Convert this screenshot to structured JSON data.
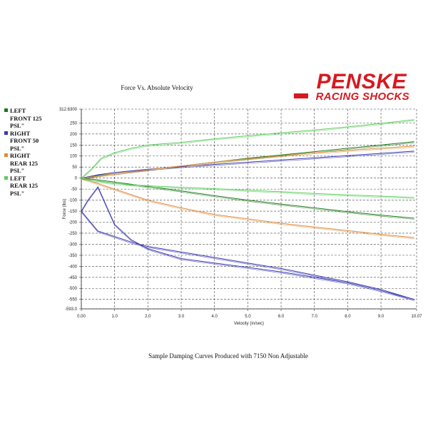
{
  "logo": {
    "brand": "PENSKE",
    "sub": "RACING SHOCKS",
    "color": "#d71920"
  },
  "caption": "Sample Damping Curves Produced with 7150 Non Adjustable",
  "chart_data": {
    "type": "line",
    "title": "Force Vs. Absolute Velocity",
    "xlabel": "Velocity (in/sec)",
    "ylabel": "Force (lbs)",
    "xlim": [
      0.0,
      10.07
    ],
    "ylim": [
      -593.0,
      312.63
    ],
    "x_tick_labels": [
      "0.00",
      "1.0",
      "2.0",
      "3.0",
      "4.0",
      "5.0",
      "6.0",
      "7.0",
      "8.0",
      "9.0",
      "10.07"
    ],
    "x_ticks": [
      0,
      1,
      2,
      3,
      4,
      5,
      6,
      7,
      8,
      9,
      10.07
    ],
    "y_tick_labels": [
      "312.6300",
      "250",
      "200",
      "150",
      "100",
      "50",
      "0",
      "-50",
      "-100",
      "-150",
      "-200",
      "-250",
      "-300",
      "-350",
      "-400",
      "-450",
      "-500",
      "-550",
      "-593.0"
    ],
    "y_ticks": [
      312.63,
      250,
      200,
      150,
      100,
      50,
      0,
      -50,
      -100,
      -150,
      -200,
      -250,
      -300,
      -350,
      -400,
      -450,
      -500,
      -550,
      -593.0
    ],
    "grid": true,
    "legend_position": "left",
    "series": [
      {
        "name": "LEFT\nFRONT 125\nPSL\"",
        "color": "#1a7a1a",
        "curves": [
          {
            "x": [
              0,
              0.5,
              1,
              2,
              3,
              4,
              5,
              6,
              7,
              8,
              9,
              10
            ],
            "y": [
              0,
              12,
              20,
              38,
              55,
              72,
              90,
              105,
              120,
              135,
              150,
              165
            ]
          },
          {
            "x": [
              0,
              0.5,
              1,
              2,
              3,
              4,
              5,
              6,
              7,
              8,
              9,
              10
            ],
            "y": [
              0,
              -8,
              -18,
              -38,
              -58,
              -80,
              -100,
              -118,
              -135,
              -152,
              -168,
              -182
            ]
          }
        ]
      },
      {
        "name": "RIGHT\nFRONT 50\nPSL\"",
        "color": "#3a3ab0",
        "curves": [
          {
            "x": [
              0,
              0.5,
              1,
              2,
              3,
              4,
              5,
              6,
              7,
              8,
              9,
              10
            ],
            "y": [
              0,
              15,
              25,
              40,
              52,
              62,
              72,
              82,
              92,
              102,
              112,
              122
            ]
          },
          {
            "x": [
              0,
              0.5,
              1,
              1.5,
              2,
              3,
              4,
              5,
              6,
              7,
              8,
              9,
              10
            ],
            "y": [
              -150,
              -240,
              -265,
              -290,
              -310,
              -335,
              -360,
              -385,
              -410,
              -440,
              -470,
              -505,
              -550
            ]
          },
          {
            "x": [
              0,
              0.2,
              0.5,
              1,
              1.5,
              2,
              3,
              4,
              5,
              6,
              7,
              8,
              9,
              10
            ],
            "y": [
              -150,
              -100,
              -40,
              -210,
              -280,
              -320,
              -365,
              -385,
              -405,
              -425,
              -450,
              -475,
              -510,
              -550
            ]
          }
        ]
      },
      {
        "name": "RIGHT\nREAR 125\nPSL\"",
        "color": "#e08a3c",
        "curves": [
          {
            "x": [
              0,
              0.5,
              1,
              2,
              3,
              4,
              5,
              6,
              7,
              8,
              9,
              10
            ],
            "y": [
              0,
              10,
              20,
              38,
              55,
              72,
              88,
              102,
              115,
              126,
              136,
              145
            ]
          },
          {
            "x": [
              0,
              0.5,
              1,
              2,
              3,
              4,
              5,
              6,
              7,
              8,
              9,
              10
            ],
            "y": [
              0,
              -25,
              -50,
              -100,
              -135,
              -165,
              -185,
              -205,
              -222,
              -238,
              -255,
              -270
            ]
          }
        ]
      },
      {
        "name": "LEFT\nREAR 125\nPSL\"",
        "color": "#5dcd5d",
        "curves": [
          {
            "x": [
              0,
              0.3,
              0.6,
              1,
              1.5,
              2,
              3,
              4,
              5,
              6,
              7,
              8,
              9,
              10
            ],
            "y": [
              0,
              40,
              90,
              115,
              135,
              150,
              162,
              178,
              192,
              205,
              218,
              232,
              248,
              265
            ]
          },
          {
            "x": [
              0,
              0.5,
              1,
              2,
              3,
              4,
              5,
              6,
              7,
              8,
              9,
              10
            ],
            "y": [
              0,
              -15,
              -25,
              -35,
              -42,
              -48,
              -55,
              -62,
              -70,
              -76,
              -82,
              -88
            ]
          }
        ]
      }
    ]
  }
}
